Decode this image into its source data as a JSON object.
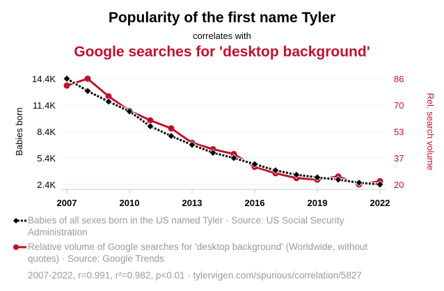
{
  "chart_data": {
    "type": "line",
    "title": "Popularity of the first name Tyler",
    "subtitle": "correlates with",
    "title2": "Google searches for 'desktop background'",
    "x": [
      2007,
      2008,
      2009,
      2010,
      2011,
      2012,
      2013,
      2014,
      2015,
      2016,
      2017,
      2018,
      2019,
      2020,
      2021,
      2022
    ],
    "xticks": [
      "2007",
      "2010",
      "2013",
      "2016",
      "2019",
      "2022"
    ],
    "ylabel": "Babies born",
    "ylabel_right": "Rel. search volume",
    "yticks_left": [
      "14.4K",
      "11.4K",
      "8.4K",
      "5.4K",
      "2.4K"
    ],
    "yticks_right": [
      "86",
      "70",
      "53",
      "37",
      "20"
    ],
    "ylim_left": [
      2400,
      14400
    ],
    "ylim_right": [
      20,
      86
    ],
    "series": [
      {
        "name": "Babies of all sexes born in the US named Tyler",
        "axis": "left",
        "color": "#000000",
        "values": [
          14400,
          13000,
          11800,
          10700,
          9000,
          7900,
          6900,
          6000,
          5400,
          4700,
          4000,
          3500,
          3200,
          2950,
          2600,
          2400
        ]
      },
      {
        "name": "Relative volume of Google searches for 'desktop background'",
        "axis": "right",
        "color": "#c0102c",
        "values": [
          81.7,
          86,
          75,
          66,
          60,
          55,
          46,
          42,
          39,
          31,
          27,
          24,
          23,
          25,
          20,
          22
        ]
      }
    ],
    "legend": [
      "Babies of all sexes born in the US named Tyler · Source: US Social Security Administration",
      "Relative volume of Google searches for 'desktop background' (Worldwide, without quotes) · Source: Google Trends"
    ],
    "footer": "2007-2022, r=0.991, r²=0.982, p<0.01 · tylervigen.com/spurious/correlation/5827",
    "grid": true,
    "legend_position": "bottom"
  }
}
